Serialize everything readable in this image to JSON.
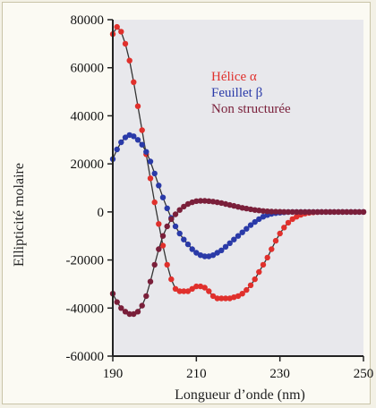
{
  "chart_data": {
    "type": "line",
    "title": "",
    "xlabel": "Longueur d’onde (nm)",
    "ylabel": "Ellipticité molaire",
    "xlim": [
      190,
      250
    ],
    "ylim": [
      -60000,
      80000
    ],
    "x_ticks": [
      190,
      210,
      230,
      250
    ],
    "y_ticks": [
      80000,
      60000,
      40000,
      20000,
      0,
      -20000,
      -40000,
      -60000
    ],
    "x_tick_labels": [
      "190",
      "210",
      "230",
      "250"
    ],
    "y_tick_labels": [
      "80000",
      "60000",
      "40000",
      "20000",
      "0",
      "-20000",
      "-40000",
      "-60000"
    ],
    "grid": false,
    "legend_position": "top-right",
    "series": [
      {
        "name": "Hélice α",
        "color": "#e0302c",
        "line_color": "#333333",
        "x": [
          190,
          191,
          192,
          193,
          194,
          195,
          196,
          197,
          198,
          199,
          200,
          201,
          202,
          203,
          204,
          205,
          206,
          207,
          208,
          209,
          210,
          211,
          212,
          213,
          214,
          215,
          216,
          217,
          218,
          219,
          220,
          221,
          222,
          223,
          224,
          225,
          226,
          227,
          228,
          229,
          230,
          231,
          232,
          233,
          234,
          235,
          236,
          237,
          238,
          239,
          240,
          241,
          242,
          243,
          244,
          245,
          246,
          247,
          248,
          249,
          250
        ],
        "y": [
          74000,
          77000,
          75000,
          70000,
          63000,
          54000,
          44000,
          34000,
          24000,
          14000,
          4000,
          -5000,
          -14000,
          -22000,
          -28000,
          -32000,
          -33000,
          -33000,
          -33000,
          -32000,
          -31000,
          -31000,
          -31500,
          -33000,
          -35000,
          -36000,
          -36000,
          -36000,
          -36000,
          -35500,
          -35000,
          -34000,
          -32500,
          -30500,
          -28000,
          -25000,
          -22000,
          -19000,
          -15500,
          -12000,
          -9000,
          -6500,
          -4500,
          -3000,
          -2000,
          -1200,
          -700,
          -400,
          -200,
          -100,
          0,
          0,
          0,
          0,
          0,
          0,
          0,
          0,
          0,
          0,
          0
        ]
      },
      {
        "name": "Feuillet β",
        "color": "#2a3aa8",
        "line_color": "#333333",
        "x": [
          190,
          191,
          192,
          193,
          194,
          195,
          196,
          197,
          198,
          199,
          200,
          201,
          202,
          203,
          204,
          205,
          206,
          207,
          208,
          209,
          210,
          211,
          212,
          213,
          214,
          215,
          216,
          217,
          218,
          219,
          220,
          221,
          222,
          223,
          224,
          225,
          226,
          227,
          228,
          229,
          230,
          231,
          232,
          233,
          234,
          235,
          236,
          237,
          238,
          239,
          240,
          241,
          242,
          243,
          244,
          245,
          246,
          247,
          248,
          249,
          250
        ],
        "y": [
          22000,
          26000,
          29000,
          31000,
          32000,
          31500,
          30000,
          28000,
          25000,
          21000,
          16000,
          11000,
          6000,
          1500,
          -2500,
          -6000,
          -9000,
          -11500,
          -13500,
          -15500,
          -17000,
          -18000,
          -18500,
          -18500,
          -18000,
          -17000,
          -16000,
          -14500,
          -13000,
          -11500,
          -10000,
          -8500,
          -7000,
          -5500,
          -4200,
          -3000,
          -2000,
          -1300,
          -800,
          -500,
          -300,
          -150,
          -50,
          0,
          0,
          0,
          0,
          0,
          0,
          0,
          0,
          0,
          0,
          0,
          0,
          0,
          0,
          0,
          0,
          0,
          0
        ]
      },
      {
        "name": "Non structurée",
        "color": "#7a1f3a",
        "line_color": "#333333",
        "x": [
          190,
          191,
          192,
          193,
          194,
          195,
          196,
          197,
          198,
          199,
          200,
          201,
          202,
          203,
          204,
          205,
          206,
          207,
          208,
          209,
          210,
          211,
          212,
          213,
          214,
          215,
          216,
          217,
          218,
          219,
          220,
          221,
          222,
          223,
          224,
          225,
          226,
          227,
          228,
          229,
          230,
          231,
          232,
          233,
          234,
          235,
          236,
          237,
          238,
          239,
          240,
          241,
          242,
          243,
          244,
          245,
          246,
          247,
          248,
          249,
          250
        ],
        "y": [
          -34000,
          -37500,
          -40000,
          -41500,
          -42500,
          -42500,
          -41500,
          -39000,
          -35000,
          -29000,
          -22000,
          -15500,
          -10000,
          -6000,
          -3000,
          -1000,
          800,
          2200,
          3300,
          4000,
          4500,
          4600,
          4600,
          4500,
          4300,
          4000,
          3700,
          3300,
          2900,
          2500,
          2100,
          1700,
          1400,
          1100,
          800,
          600,
          400,
          250,
          150,
          80,
          40,
          20,
          0,
          0,
          0,
          0,
          0,
          0,
          0,
          0,
          0,
          0,
          0,
          0,
          0,
          0,
          0,
          0,
          0,
          0,
          0
        ]
      }
    ]
  },
  "legend": {
    "items": [
      {
        "label": "Hélice α",
        "color": "#e0302c"
      },
      {
        "label": "Feuillet β",
        "color": "#2a3aa8"
      },
      {
        "label": "Non structurée",
        "color": "#7a1f3a"
      }
    ]
  },
  "colors": {
    "plot_background": "#e8e8ec",
    "axis": "#222222"
  }
}
